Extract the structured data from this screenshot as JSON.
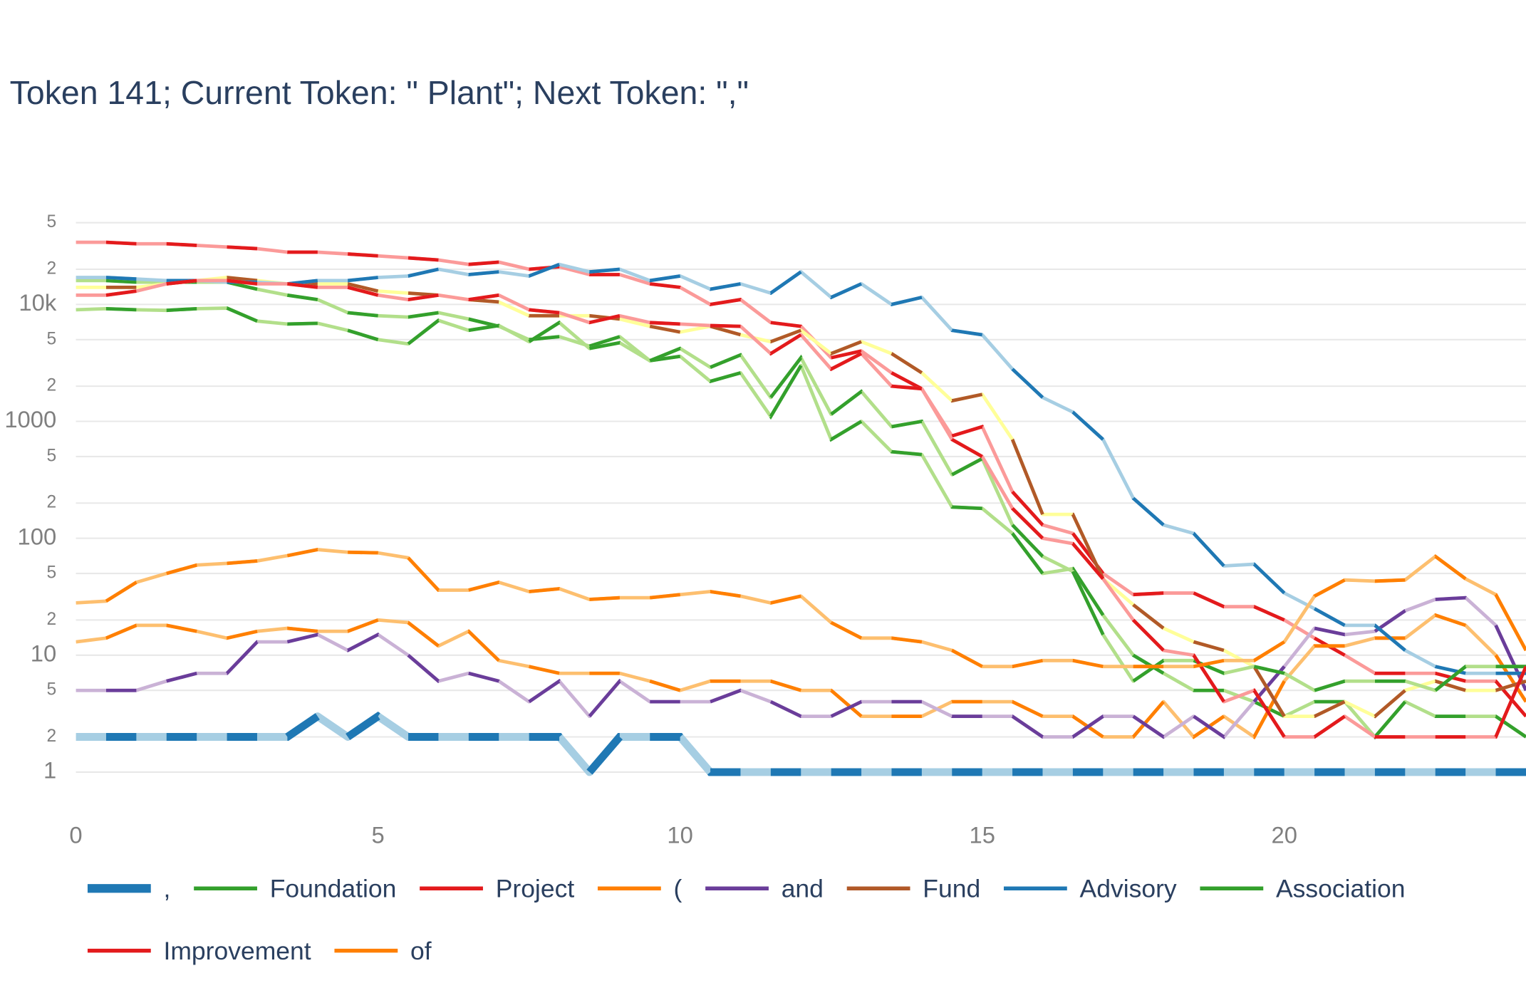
{
  "chart_data": {
    "type": "line",
    "title": "Token 141; Current Token: \" Plant\"; Next Token: \",\"",
    "log_y": true,
    "grid": true,
    "xlim": [
      0,
      24
    ],
    "xticks": [
      0,
      5,
      10,
      15,
      20
    ],
    "ylim": [
      0.41,
      79000
    ],
    "yticks": [
      1,
      2,
      5,
      10,
      {
        "value": 20,
        "label": "2"
      },
      {
        "value": 50,
        "label": "5"
      },
      100,
      {
        "value": 200,
        "label": "2"
      },
      {
        "value": 500,
        "label": "5"
      },
      1000,
      {
        "value": 2000,
        "label": "2"
      },
      {
        "value": 5000,
        "label": "5"
      },
      {
        "value": 10000,
        "label": "10k"
      },
      {
        "value": 20000,
        "label": "2"
      },
      {
        "value": 50000,
        "label": "5"
      }
    ],
    "x": [
      0,
      0.5,
      1,
      1.5,
      2,
      2.5,
      3,
      3.5,
      4,
      4.5,
      5,
      5.5,
      6,
      6.5,
      7,
      7.5,
      8,
      8.5,
      9,
      9.5,
      10,
      10.5,
      11,
      11.5,
      12,
      12.5,
      13,
      13.5,
      14,
      14.5,
      15,
      15.5,
      16,
      16.5,
      17,
      17.5,
      18,
      18.5,
      19,
      19.5,
      20,
      20.5,
      21,
      21.5,
      22,
      22.5,
      23,
      23.5,
      24
    ],
    "series": [
      {
        "name": ",",
        "color": "#1f78b4",
        "alt_color": "#a6cee3",
        "values": [
          2,
          2,
          2,
          2,
          2,
          2,
          2,
          2,
          3,
          2,
          3,
          2,
          2,
          2,
          2,
          2,
          2,
          1,
          2,
          2,
          2,
          1,
          1,
          1,
          1,
          1,
          1,
          1,
          1,
          1,
          1,
          1,
          1,
          1,
          1,
          1,
          1,
          1,
          1,
          1,
          1,
          1,
          1,
          1,
          1,
          1,
          1,
          1,
          1
        ]
      },
      {
        "name": "Foundation",
        "color": "#33a02c",
        "alt_color": "#b2df8a",
        "values": [
          16000,
          16000,
          15500,
          15500,
          15500,
          15500,
          13500,
          12000,
          11000,
          8500,
          8000,
          7800,
          8500,
          7500,
          6500,
          5000,
          5300,
          4400,
          5300,
          3300,
          3600,
          2200,
          2600,
          1100,
          3000,
          700,
          1000,
          550,
          520,
          185,
          180,
          110,
          50,
          55,
          22,
          10,
          7,
          5,
          5,
          4,
          3,
          4,
          4,
          2,
          4,
          3,
          3,
          3,
          2
        ]
      },
      {
        "name": "Project",
        "color": "#e31a1c",
        "alt_color": "#fb9a99",
        "values": [
          34000,
          34000,
          33000,
          33000,
          32000,
          31000,
          30000,
          28000,
          28000,
          27000,
          26000,
          25000,
          24000,
          22000,
          23000,
          20000,
          21000,
          18000,
          18000,
          15000,
          14000,
          10000,
          11000,
          7000,
          6500,
          3500,
          4000,
          2600,
          1900,
          750,
          900,
          250,
          130,
          110,
          50,
          33,
          34,
          34,
          26,
          26,
          20,
          14,
          10,
          7,
          7,
          7,
          6,
          6,
          3
        ]
      },
      {
        "name": "(",
        "color": "#ff7f00",
        "alt_color": "#fdbf6f",
        "values": [
          13,
          14,
          18,
          18,
          16,
          14,
          16,
          17,
          16,
          16,
          20,
          19,
          12,
          16,
          9,
          8,
          7,
          7,
          7,
          6,
          5,
          6,
          6,
          6,
          5,
          5,
          3,
          3,
          3,
          4,
          4,
          4,
          3,
          3,
          2,
          2,
          4,
          2,
          3,
          2,
          6,
          12,
          12,
          14,
          14,
          22,
          18,
          10,
          4
        ]
      },
      {
        "name": "and",
        "color": "#6a3d9a",
        "alt_color": "#cab2d6",
        "values": [
          5,
          5,
          5,
          6,
          7,
          7,
          13,
          13,
          15,
          11,
          15,
          10,
          6,
          7,
          6,
          4,
          6,
          3,
          6,
          4,
          4,
          4,
          5,
          4,
          3,
          3,
          4,
          4,
          4,
          3,
          3,
          3,
          2,
          2,
          3,
          3,
          2,
          3,
          2,
          4,
          8,
          17,
          15,
          16,
          24,
          30,
          31,
          18,
          5
        ]
      },
      {
        "name": "Fund",
        "color": "#b15928",
        "alt_color": "#ffff99",
        "values": [
          14000,
          14000,
          14000,
          15000,
          16000,
          17000,
          16000,
          15000,
          15000,
          15000,
          13000,
          12500,
          12000,
          11000,
          10500,
          8000,
          8000,
          8000,
          7500,
          6500,
          5800,
          6500,
          5500,
          4800,
          6000,
          3800,
          4800,
          3800,
          2600,
          1500,
          1700,
          700,
          160,
          160,
          45,
          27,
          17,
          13,
          11,
          8,
          3,
          3,
          4,
          3,
          5,
          6,
          5,
          5,
          6
        ]
      },
      {
        "name": "Advisory",
        "color": "#1f78b4",
        "alt_color": "#a6cee3",
        "values": [
          17000,
          17000,
          16500,
          16000,
          16000,
          15500,
          15500,
          15000,
          16000,
          16000,
          17000,
          17500,
          20000,
          18000,
          19000,
          17500,
          22000,
          19000,
          20000,
          16000,
          17500,
          13500,
          15000,
          12500,
          19000,
          11500,
          15000,
          10000,
          11500,
          6000,
          5500,
          2800,
          1600,
          1200,
          700,
          220,
          130,
          110,
          58,
          60,
          34,
          25,
          18,
          18,
          11,
          8,
          7,
          7,
          7
        ]
      },
      {
        "name": "Association",
        "color": "#33a02c",
        "alt_color": "#b2df8a",
        "values": [
          9000,
          9200,
          9000,
          8900,
          9200,
          9300,
          7200,
          6800,
          6900,
          6000,
          5000,
          4600,
          7300,
          6000,
          6600,
          4800,
          7000,
          4200,
          4700,
          3300,
          4200,
          2900,
          3700,
          1600,
          3500,
          1150,
          1800,
          900,
          1000,
          350,
          480,
          130,
          70,
          52,
          15,
          6,
          9,
          9,
          7,
          8,
          7,
          5,
          6,
          6,
          6,
          5,
          8,
          8,
          8
        ]
      },
      {
        "name": "Improvement",
        "color": "#e31a1c",
        "alt_color": "#fb9a99",
        "values": [
          12000,
          12000,
          13000,
          15000,
          16000,
          16000,
          15000,
          15000,
          14000,
          14000,
          12000,
          11000,
          12000,
          11000,
          12000,
          9000,
          8500,
          7000,
          8000,
          7000,
          6800,
          6600,
          6500,
          3800,
          5500,
          2800,
          3800,
          2000,
          1900,
          700,
          500,
          180,
          100,
          90,
          45,
          20,
          11,
          10,
          4,
          5,
          2,
          2,
          3,
          2,
          2,
          2,
          2,
          2,
          8
        ]
      },
      {
        "name": "of",
        "color": "#ff7f00",
        "alt_color": "#fdbf6f",
        "values": [
          28,
          29,
          42,
          50,
          59,
          61,
          64,
          71,
          80,
          76,
          75,
          68,
          36,
          36,
          42,
          35,
          37,
          30,
          31,
          31,
          33,
          35,
          32,
          28,
          32,
          19,
          14,
          14,
          13,
          11,
          8,
          8,
          9,
          9,
          8,
          8,
          8,
          8,
          9,
          9,
          13,
          32,
          44,
          43,
          44,
          70,
          45,
          33,
          11
        ]
      }
    ]
  }
}
